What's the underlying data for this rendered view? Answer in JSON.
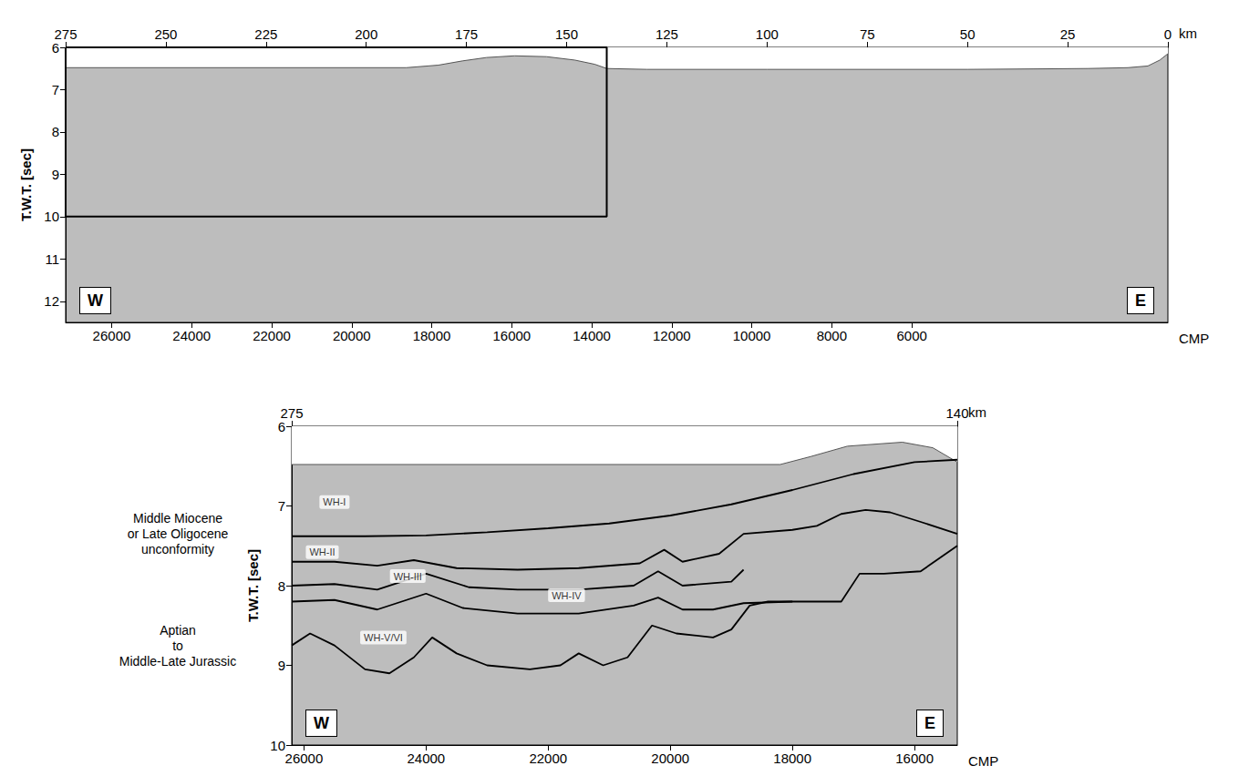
{
  "chart_data": [
    {
      "type": "line",
      "xlabel": "km",
      "x2label": "CMP",
      "ylabel": "T.W.T. [sec]",
      "xlim": [
        275,
        0
      ],
      "xticks": [
        275,
        250,
        225,
        200,
        175,
        150,
        125,
        100,
        75,
        50,
        25,
        0
      ],
      "x2lim": [
        27150,
        -400
      ],
      "x2ticks": [
        26000,
        24000,
        22000,
        20000,
        18000,
        16000,
        14000,
        12000,
        10000,
        8000,
        6000
      ],
      "ylim": [
        12.5,
        6
      ],
      "yticks": [
        6,
        7,
        8,
        9,
        10,
        11,
        12
      ],
      "grid": false,
      "corner_labels": [
        "W",
        "E"
      ],
      "inset_box": {
        "x": [
          275,
          140
        ],
        "y": [
          6,
          10
        ]
      },
      "series": [
        {
          "type": "area",
          "axis": "x",
          "color": "#555555",
          "x": [
            275,
            190,
            182,
            176,
            170,
            163,
            155,
            148,
            143,
            140,
            130,
            100,
            50,
            20,
            10,
            5,
            2,
            0
          ],
          "values": [
            6.48,
            6.48,
            6.42,
            6.32,
            6.24,
            6.2,
            6.22,
            6.3,
            6.4,
            6.5,
            6.52,
            6.52,
            6.52,
            6.5,
            6.48,
            6.44,
            6.3,
            6.15
          ]
        }
      ]
    },
    {
      "type": "line",
      "xlabel": "km",
      "x2label": "CMP",
      "ylabel": "T.W.T. [sec]",
      "xlim": [
        275,
        140
      ],
      "xticks": [
        275,
        140
      ],
      "x2lim": [
        26200,
        15300
      ],
      "x2ticks": [
        26000,
        24000,
        22000,
        20000,
        18000,
        16000
      ],
      "ylim": [
        10,
        6
      ],
      "yticks": [
        6,
        7,
        8,
        9,
        10
      ],
      "grid": false,
      "corner_labels": [
        "W",
        "E"
      ],
      "side_notes": [
        {
          "lines": [
            "Middle Miocene",
            "or Late Oligocene",
            "unconformity"
          ],
          "y": 7.35
        },
        {
          "lines": [
            "Aptian",
            "to",
            "Middle-Late Jurassic"
          ],
          "y": 8.75
        }
      ],
      "annotations": [
        {
          "text": "WH-I",
          "x": 25500,
          "y": 6.95
        },
        {
          "text": "WH-II",
          "x": 25700,
          "y": 7.58
        },
        {
          "text": "WH-III",
          "x": 24300,
          "y": 7.88
        },
        {
          "text": "WH-IV",
          "x": 21700,
          "y": 8.12
        },
        {
          "text": "WH-V/VI",
          "x": 24700,
          "y": 8.65
        }
      ],
      "series": [
        {
          "type": "area",
          "axis": "x2",
          "color": "#555555",
          "x": [
            26200,
            18200,
            17700,
            17100,
            16200,
            15700,
            15300
          ],
          "values": [
            6.48,
            6.48,
            6.38,
            6.25,
            6.2,
            6.27,
            6.45
          ]
        },
        {
          "type": "line",
          "axis": "x2",
          "color": "#000000",
          "x": [
            26200,
            25000,
            24000,
            23000,
            22000,
            21000,
            20000,
            19000,
            18000,
            17000,
            16000,
            15300
          ],
          "values": [
            7.38,
            7.38,
            7.37,
            7.33,
            7.28,
            7.22,
            7.12,
            6.98,
            6.8,
            6.6,
            6.45,
            6.42
          ]
        },
        {
          "type": "line",
          "axis": "x2",
          "color": "#000000",
          "x": [
            26200,
            25500,
            24800,
            24200,
            23500,
            22500,
            21500,
            20500,
            20100,
            19800,
            19200,
            18800,
            18000,
            17600,
            17200,
            16800,
            16400,
            15900,
            15300
          ],
          "values": [
            7.7,
            7.7,
            7.75,
            7.68,
            7.78,
            7.8,
            7.78,
            7.72,
            7.55,
            7.7,
            7.6,
            7.35,
            7.3,
            7.25,
            7.1,
            7.05,
            7.08,
            7.2,
            7.35
          ]
        },
        {
          "type": "line",
          "axis": "x2",
          "color": "#000000",
          "x": [
            26200,
            25500,
            24800,
            24000,
            23300,
            22500,
            21500,
            20600,
            20200,
            19800,
            19000,
            18800
          ],
          "values": [
            8.0,
            7.98,
            8.05,
            7.85,
            8.02,
            8.05,
            8.05,
            8.0,
            7.82,
            8.0,
            7.95,
            7.8
          ]
        },
        {
          "type": "line",
          "axis": "x2",
          "color": "#000000",
          "x": [
            26200,
            25500,
            24800,
            24000,
            23400,
            22500,
            21500,
            20600,
            20200,
            19800,
            19300,
            18800,
            18000,
            17200,
            16900,
            16500,
            15900,
            15300
          ],
          "values": [
            8.2,
            8.18,
            8.3,
            8.1,
            8.28,
            8.35,
            8.35,
            8.25,
            8.15,
            8.3,
            8.3,
            8.22,
            8.2,
            8.2,
            7.85,
            7.85,
            7.82,
            7.5
          ]
        },
        {
          "type": "line",
          "axis": "x2",
          "color": "#000000",
          "x": [
            26200,
            25900,
            25500,
            25000,
            24600,
            24200,
            23900,
            23500,
            23000,
            22300,
            21800,
            21500,
            21100,
            20700,
            20300,
            19900,
            19300,
            19000,
            18700,
            18400,
            18000
          ],
          "values": [
            8.75,
            8.6,
            8.75,
            9.05,
            9.1,
            8.9,
            8.65,
            8.85,
            9.0,
            9.05,
            9.0,
            8.85,
            9.0,
            8.9,
            8.5,
            8.6,
            8.65,
            8.55,
            8.25,
            8.2,
            8.2
          ]
        }
      ]
    }
  ]
}
